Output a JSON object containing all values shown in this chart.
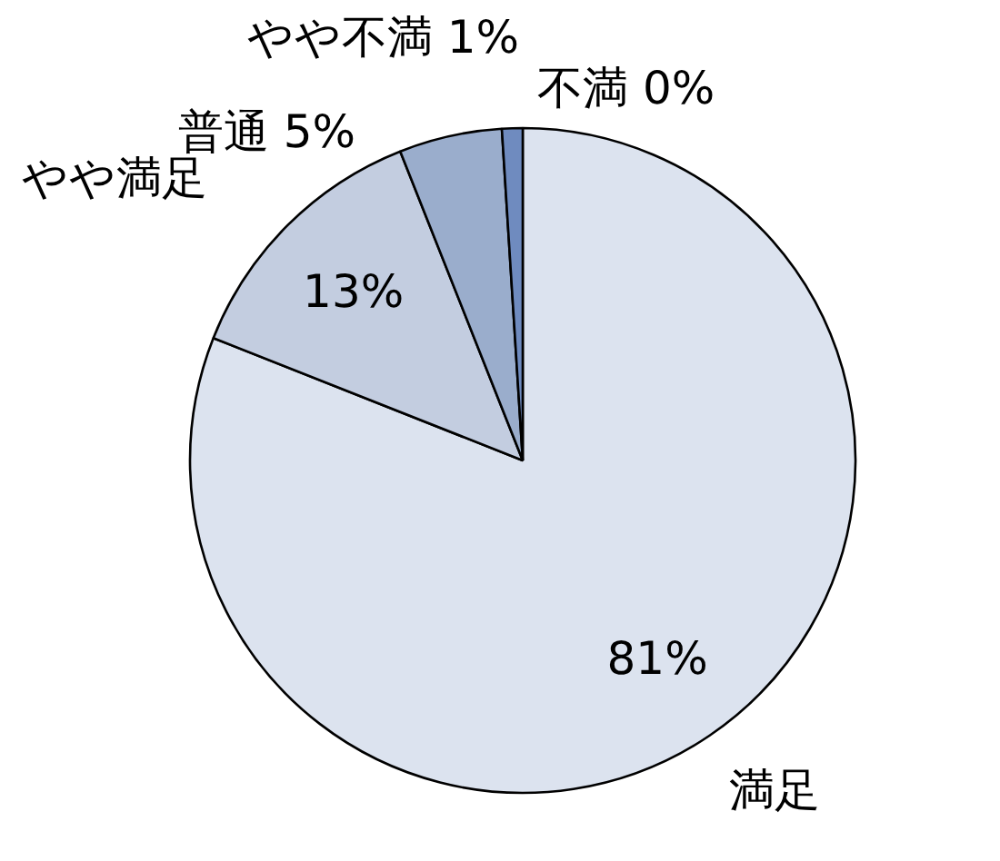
{
  "chart_data": {
    "type": "pie",
    "categories": [
      "満足",
      "やや満足",
      "普通",
      "やや不満",
      "不満"
    ],
    "values": [
      81,
      13,
      5,
      1,
      0
    ],
    "colors": [
      "#dce3ef",
      "#c3cde0",
      "#9aadcc",
      "#6f8bbf",
      "#3a5a9a"
    ],
    "value_labels": [
      "81%",
      "13%",
      "5%",
      "1%",
      "0%"
    ]
  }
}
